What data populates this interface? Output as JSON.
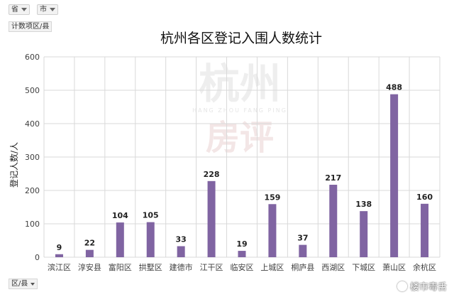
{
  "filters": [
    {
      "label": "省"
    },
    {
      "label": "市"
    }
  ],
  "value_field": "计数项区/县",
  "axis_field": "区/县",
  "watermark": {
    "main": "杭州",
    "sub": "HANG ZHOU FANG PING",
    "second": "房评",
    "bottom": "楼市毒舌"
  },
  "colors": {
    "bar": "#8064a2",
    "grid": "#d9d9d9",
    "text": "#404040"
  },
  "chart_data": {
    "type": "bar",
    "title": "杭州各区登记入围人数统计",
    "ylabel": "登记人数/人",
    "xlabel": "",
    "ylim": [
      0,
      600
    ],
    "yticks": [
      0,
      100,
      200,
      300,
      400,
      500,
      600
    ],
    "grid": true,
    "categories": [
      "滨江区",
      "淳安县",
      "富阳区",
      "拱墅区",
      "建德市",
      "江干区",
      "临安区",
      "上城区",
      "桐庐县",
      "西湖区",
      "下城区",
      "萧山区",
      "余杭区"
    ],
    "values": [
      9,
      22,
      104,
      105,
      33,
      228,
      19,
      159,
      37,
      217,
      138,
      488,
      160
    ]
  }
}
